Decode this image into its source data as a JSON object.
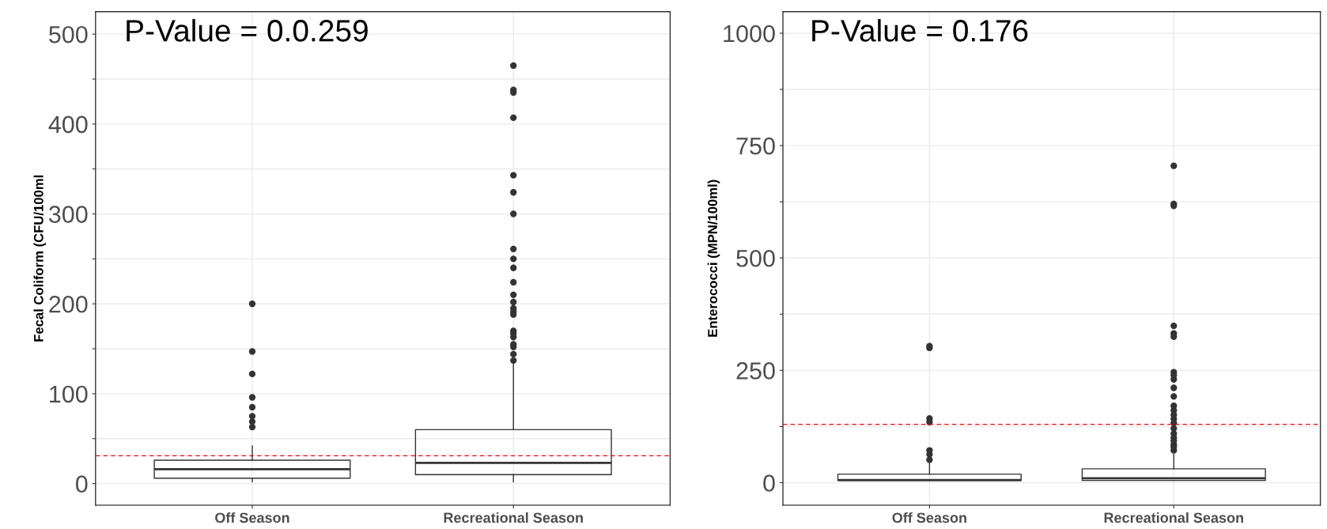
{
  "chart_data": [
    {
      "type": "box",
      "ylabel": "Fecal Coliform (CFU/100ml",
      "categories": [
        "Off Season",
        "Recreational Season"
      ],
      "boxes": [
        {
          "low": 2,
          "q1": 6,
          "median": 16,
          "q3": 26,
          "high": 42,
          "outliers": [
            200,
            147,
            122,
            96,
            85,
            75,
            69,
            63
          ]
        },
        {
          "low": 2,
          "q1": 10,
          "median": 23,
          "q3": 60,
          "high": 134,
          "outliers": [
            465,
            438,
            435,
            407,
            343,
            324,
            300,
            261,
            250,
            240,
            224,
            210,
            202,
            195,
            191,
            188,
            170,
            167,
            163,
            155,
            152,
            144,
            137
          ]
        }
      ],
      "color": "#333333",
      "ylim": [
        -24,
        525
      ],
      "yticks": [
        0,
        {
          "value": 50,
          "label": null
        },
        100,
        {
          "value": 150,
          "label": null
        },
        200,
        {
          "value": 250,
          "label": null
        },
        300,
        {
          "value": 350,
          "label": null
        },
        400,
        {
          "value": 450,
          "label": null
        },
        500
      ],
      "grid": true,
      "ref_lines": [
        {
          "axis": "y",
          "value": 31,
          "color": "#ff0000",
          "line_style": "dashed"
        }
      ],
      "annotations": [
        "P-Value = 0.0.259"
      ]
    },
    {
      "type": "box",
      "ylabel": "Enterococci (MPN/100ml)",
      "categories": [
        "Off Season",
        "Recreational Season"
      ],
      "boxes": [
        {
          "low": 5,
          "q1": 5,
          "median": 6,
          "q3": 19,
          "high": 43,
          "outliers": [
            304,
            300,
            143,
            135,
            72,
            63,
            51
          ]
        },
        {
          "low": 5,
          "q1": 5,
          "median": 10,
          "q3": 31,
          "high": 63,
          "outliers": [
            705,
            620,
            616,
            349,
            332,
            325,
            246,
            239,
            230,
            211,
            192,
            171,
            161,
            151,
            142,
            133,
            121,
            109,
            100,
            93,
            85,
            80,
            72
          ]
        }
      ],
      "color": "#333333",
      "ylim": [
        -50,
        1048
      ],
      "yticks": [
        0,
        {
          "value": 125,
          "label": null
        },
        250,
        {
          "value": 375,
          "label": null
        },
        500,
        {
          "value": 625,
          "label": null
        },
        750,
        {
          "value": 875,
          "label": null
        },
        1000
      ],
      "grid": true,
      "ref_lines": [
        {
          "axis": "y",
          "value": 130,
          "color": "#ff0000",
          "line_style": "dashed"
        }
      ],
      "annotations": [
        "P-Value = 0.176"
      ]
    }
  ]
}
